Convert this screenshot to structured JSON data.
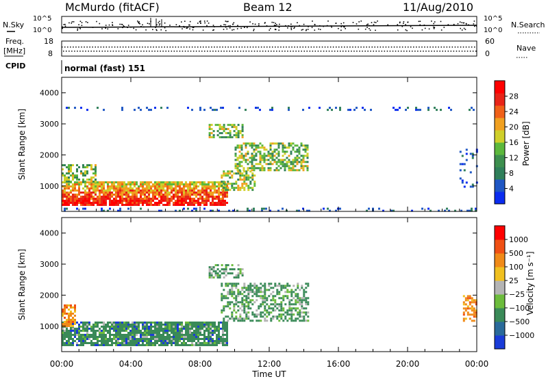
{
  "header": {
    "station": "McMurdo (fitACF)",
    "beam": "Beam 12",
    "date": "11/Aug/2010"
  },
  "strip": {
    "nsky_label": "N.Sky",
    "nsearch_label": "N.Search",
    "freq_label_1": "Freq.",
    "freq_label_2": "[MHz]",
    "nave_label": "Nave",
    "cpid_label": "CPID",
    "cpid_value": "normal (fast) 151",
    "noise_ticks_left": [
      "10^5",
      "10^0"
    ],
    "noise_ticks_right": [
      "10^5",
      "10^0"
    ],
    "freq_ticks": [
      "18",
      "8"
    ],
    "nave_ticks": [
      "60",
      "0"
    ]
  },
  "chart_data": [
    {
      "type": "heatmap",
      "name": "power-panel",
      "ylabel": "Slant Range [km]",
      "ylim": [
        180,
        4500
      ],
      "yticks": [
        1000,
        2000,
        3000,
        4000
      ],
      "xlabel": "Time UT",
      "xticks": [
        "00:00",
        "04:00",
        "08:00",
        "12:00",
        "16:00",
        "20:00",
        "00:00"
      ],
      "xlim_hours": [
        0,
        24
      ],
      "colorbar": {
        "label": "Power [dB]",
        "ticks": [
          "28",
          "24",
          "20",
          "16",
          "12",
          "8",
          "4"
        ],
        "colors": [
          "#0a2cf0",
          "#1f57c4",
          "#2f7f5a",
          "#3d8f4e",
          "#5cb83c",
          "#cfcf2a",
          "#f0a020",
          "#f06018",
          "#e82418",
          "#ff0000"
        ]
      },
      "regions": [
        {
          "t0": 0.0,
          "t1": 9.6,
          "r0": 380,
          "r1": 1150,
          "level": "strong"
        },
        {
          "t0": 0.0,
          "t1": 2.0,
          "r0": 1150,
          "r1": 1700,
          "level": "medium"
        },
        {
          "t0": 9.2,
          "t1": 11.2,
          "r0": 900,
          "r1": 1500,
          "level": "medium"
        },
        {
          "t0": 10.0,
          "t1": 14.2,
          "r0": 1500,
          "r1": 2400,
          "level": "medium"
        },
        {
          "t0": 8.5,
          "t1": 10.5,
          "r0": 2600,
          "r1": 3000,
          "level": "medium"
        },
        {
          "t0": 0.0,
          "t1": 24.0,
          "r0": 180,
          "r1": 300,
          "level": "weak"
        },
        {
          "t0": 0.0,
          "t1": 24.0,
          "r0": 3450,
          "r1": 3550,
          "level": "weak"
        },
        {
          "t0": 23.0,
          "t1": 24.0,
          "r0": 1000,
          "r1": 2200,
          "level": "weak"
        }
      ]
    },
    {
      "type": "heatmap",
      "name": "velocity-panel",
      "ylabel": "Slant Range [km]",
      "ylim": [
        180,
        4500
      ],
      "yticks": [
        1000,
        2000,
        3000,
        4000
      ],
      "xlabel": "Time UT",
      "xticks": [
        "00:00",
        "04:00",
        "08:00",
        "12:00",
        "16:00",
        "20:00",
        "00:00"
      ],
      "xlim_hours": [
        0,
        24
      ],
      "colorbar": {
        "label": "Velocity [m s⁻¹]",
        "ticks": [
          "1000",
          "500",
          "100",
          "25",
          "−25",
          "−100",
          "−500",
          "−1000"
        ],
        "colors": [
          "#1a3cd8",
          "#2a6a9a",
          "#3a8a58",
          "#6cbc3c",
          "#b4b4b4",
          "#f0c020",
          "#f08a18",
          "#f05014",
          "#ff0000"
        ]
      },
      "regions": [
        {
          "t0": 0.0,
          "t1": 9.6,
          "r0": 380,
          "r1": 1150,
          "level": "toward"
        },
        {
          "t0": 0.0,
          "t1": 0.8,
          "r0": 1000,
          "r1": 1700,
          "level": "away"
        },
        {
          "t0": 9.2,
          "t1": 14.2,
          "r0": 1200,
          "r1": 2400,
          "level": "toward-weak"
        },
        {
          "t0": 8.5,
          "t1": 10.5,
          "r0": 2600,
          "r1": 3000,
          "level": "toward-weak"
        },
        {
          "t0": 23.2,
          "t1": 24.0,
          "r0": 1200,
          "r1": 2000,
          "level": "away"
        }
      ]
    }
  ]
}
